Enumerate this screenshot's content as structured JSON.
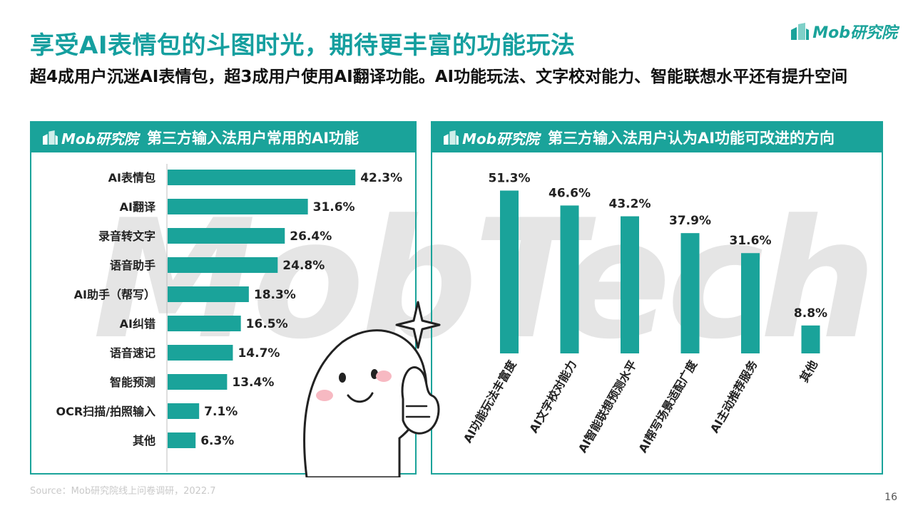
{
  "title": "享受AI表情包的斗图时光，期待更丰富的功能玩法",
  "subtitle": "超4成用户沉迷AI表情包，超3成用户使用AI翻译功能。AI功能玩法、文字校对能力、智能联想水平还有提升空间",
  "brand": {
    "text": "Mob研究院",
    "accent": "#1aa39a"
  },
  "watermark": "MobTech",
  "source": "Source：Mob研究院线上问卷调研，2022.7",
  "page_number": "16",
  "chart_data": [
    {
      "type": "bar",
      "orientation": "horizontal",
      "title": "第三方输入法用户常用的AI功能",
      "categories": [
        "AI表情包",
        "AI翻译",
        "录音转文字",
        "语音助手",
        "AI助手（帮写）",
        "AI纠错",
        "语音速记",
        "智能预测",
        "OCR扫描/拍照输入",
        "其他"
      ],
      "values": [
        42.3,
        31.6,
        26.4,
        24.8,
        18.3,
        16.5,
        14.7,
        13.4,
        7.1,
        6.3
      ],
      "value_labels": [
        "42.3%",
        "31.6%",
        "26.4%",
        "24.8%",
        "18.3%",
        "16.5%",
        "14.7%",
        "13.4%",
        "7.1%",
        "6.3%"
      ],
      "color": "#1aa39a",
      "xlim": [
        0,
        45
      ]
    },
    {
      "type": "bar",
      "orientation": "vertical",
      "title": "第三方输入法用户认为AI功能可改进的方向",
      "categories": [
        "AI功能玩法丰富度",
        "AI文字校对能力",
        "AI智能联想预测水平",
        "AI帮写场景适配广度",
        "AI主动推荐服务",
        "其他"
      ],
      "values": [
        51.3,
        46.6,
        43.2,
        37.9,
        31.6,
        8.8
      ],
      "value_labels": [
        "51.3%",
        "46.6%",
        "43.2%",
        "37.9%",
        "31.6%",
        "8.8%"
      ],
      "color": "#1aa39a",
      "ylim": [
        0,
        55
      ]
    }
  ]
}
